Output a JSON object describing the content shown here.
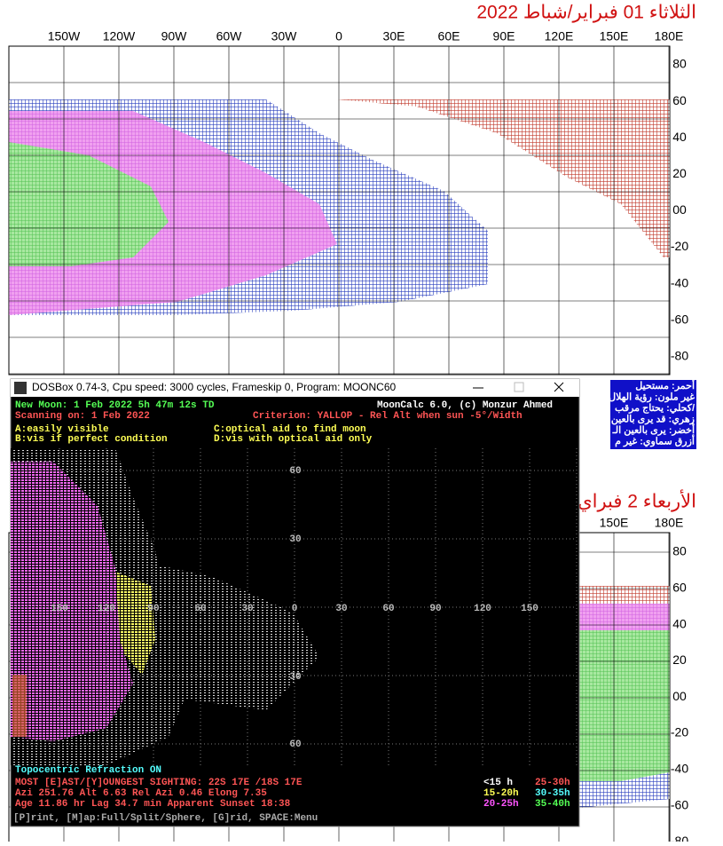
{
  "top_map": {
    "title": "الثلاثاء 01 فبراير/شباط 2022",
    "lon_labels": [
      "150W",
      "120W",
      "90W",
      "60W",
      "30W",
      "0",
      "30E",
      "60E",
      "90E",
      "120E",
      "150E",
      "180E"
    ],
    "lat_labels": [
      "80",
      "60",
      "40",
      "20",
      "00",
      "-20",
      "-40",
      "-60",
      "-80"
    ],
    "legend": [
      "أحمر: مستحيل",
      "غير ملون: رؤية الهلال",
      "كحلي: يحتاج مرقب/",
      "زهري: قد يرى بالعين",
      "أخضر: يرى بالعين الـ",
      "أزرق سماوي: غير م"
    ]
  },
  "bottom_map": {
    "title": "الأربعاء 2 فبراي",
    "lon_labels": [
      "150E",
      "180E"
    ],
    "lat_labels": [
      "80",
      "60",
      "40",
      "20",
      "00",
      "-20",
      "-40",
      "-60",
      "-80"
    ]
  },
  "dosbox": {
    "window_title": "DOSBox 0.74-3, Cpu speed:    3000 cycles, Frameskip  0, Program:   MOONC60",
    "segments": [
      {
        "text": "New Moon: 1 Feb 2022      5h 47m 12s  TD",
        "color": "#55ff55"
      },
      {
        "text": "MoonCalc 6.0, (c) Monzur Ahmed",
        "color": "#ffffff"
      },
      {
        "text": "Scanning on: 1 Feb 2022",
        "color": "#ff5555"
      },
      {
        "text": "Criterion: YALLOP - Rel Alt when sun -5°/Width",
        "color": "#ff5555"
      },
      {
        "text": "A:easily visible",
        "color": "#ffff55"
      },
      {
        "text": "C:optical aid to find moon",
        "color": "#ffff55"
      },
      {
        "text": "B:vis if perfect condition",
        "color": "#ffff55"
      },
      {
        "text": "D:vis with optical aid only",
        "color": "#ffff55"
      },
      {
        "text": "Topocentric  Refraction ON",
        "color": "#55ffff"
      },
      {
        "text": "MOST [E]AST/[Y]OUNGEST SIGHTING: 22S 17E /18S 17E",
        "color": "#ff5555"
      },
      {
        "text": "Azi 251.76   Alt 6.63   Rel Azi 0.46   Elong 7.35",
        "color": "#ff5555"
      },
      {
        "text": "Age 11.86 hr   Lag 34.7 min  Apparent Sunset  18:38",
        "color": "#ff5555"
      },
      {
        "text": "<15 h",
        "color": "#ffffff"
      },
      {
        "text": "25-30h",
        "color": "#ff5555"
      },
      {
        "text": "15-20h",
        "color": "#ffff55"
      },
      {
        "text": "30-35h",
        "color": "#55ffff"
      },
      {
        "text": "20-25h",
        "color": "#ff55ff"
      },
      {
        "text": "35-40h",
        "color": "#55ff55"
      },
      {
        "text": "[P]rint, [M]ap:Full/Split/Sphere, [G]rid, SPACE:Menu",
        "color": "#aaaaaa"
      }
    ],
    "grid_x_labels": [
      "150",
      "120",
      "90",
      "60",
      "30",
      "0",
      "30",
      "60",
      "90",
      "120",
      "150"
    ],
    "grid_y_labels": [
      "60",
      "30",
      "30",
      "60"
    ]
  }
}
